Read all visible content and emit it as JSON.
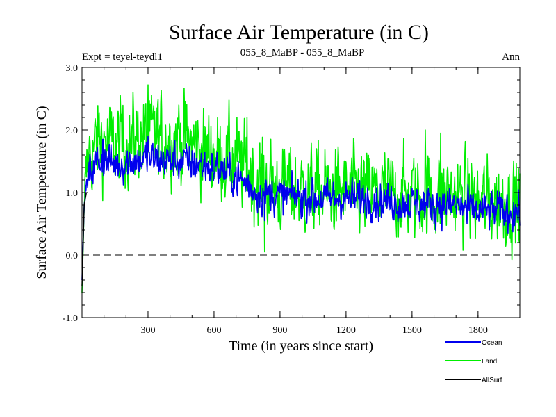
{
  "header": {
    "title": "Surface Air Temperature (in C)",
    "expt": "Expt = teyel-teydl1",
    "comparison": "055_8_MaBP - 055_8_MaBP",
    "season": "Ann"
  },
  "chart_data": {
    "type": "line",
    "title": "Surface Air Temperature (in C)",
    "xlabel": "Time (in years since start)",
    "ylabel": "Surface Air Temperature (in C)",
    "xlim": [
      0,
      1990
    ],
    "ylim": [
      -1.0,
      3.0
    ],
    "x_ticks": [
      300,
      600,
      900,
      1200,
      1500,
      1800
    ],
    "x_tick_labels": [
      "300",
      "600",
      "900",
      "1200",
      "1500",
      "1800"
    ],
    "y_ticks": [
      -1.0,
      0.0,
      1.0,
      2.0,
      3.0
    ],
    "y_tick_labels": [
      "-1.0",
      "0.0",
      "1.0",
      "2.0",
      "3.0"
    ],
    "reference_line": {
      "y": 0.0,
      "style": "dashed"
    },
    "legend_position": "bottom-right",
    "series": [
      {
        "name": "Land",
        "color": "#00ee00",
        "trend": [
          [
            0,
            -0.6
          ],
          [
            10,
            0.8
          ],
          [
            30,
            1.6
          ],
          [
            80,
            1.85
          ],
          [
            150,
            1.75
          ],
          [
            300,
            1.9
          ],
          [
            450,
            1.85
          ],
          [
            600,
            1.6
          ],
          [
            700,
            1.5
          ],
          [
            800,
            1.2
          ],
          [
            900,
            1.05
          ],
          [
            1100,
            1.0
          ],
          [
            1300,
            1.0
          ],
          [
            1500,
            0.95
          ],
          [
            1700,
            0.95
          ],
          [
            1800,
            0.85
          ],
          [
            1990,
            0.85
          ]
        ],
        "variability": 0.32,
        "peaks": [
          [
            300,
            2.72
          ],
          [
            330,
            2.3
          ],
          [
            180,
            2.25
          ],
          [
            440,
            2.4
          ],
          [
            470,
            2.45
          ],
          [
            830,
            0.05
          ],
          [
            750,
            2.2
          ],
          [
            1560,
            2.0
          ],
          [
            1630,
            1.95
          ],
          [
            1950,
            0.2
          ]
        ]
      },
      {
        "name": "Ocean",
        "color": "#0000ee",
        "trend": [
          [
            0,
            -0.4
          ],
          [
            10,
            0.8
          ],
          [
            30,
            1.3
          ],
          [
            80,
            1.55
          ],
          [
            150,
            1.45
          ],
          [
            300,
            1.55
          ],
          [
            450,
            1.5
          ],
          [
            600,
            1.4
          ],
          [
            700,
            1.25
          ],
          [
            800,
            1.0
          ],
          [
            900,
            0.95
          ],
          [
            1100,
            0.9
          ],
          [
            1300,
            0.9
          ],
          [
            1500,
            0.82
          ],
          [
            1700,
            0.8
          ],
          [
            1800,
            0.7
          ],
          [
            1990,
            0.7
          ]
        ],
        "variability": 0.14,
        "peaks": [
          [
            300,
            1.9
          ],
          [
            95,
            1.85
          ],
          [
            830,
            0.55
          ],
          [
            1600,
            0.5
          ],
          [
            1750,
            0.5
          ]
        ]
      },
      {
        "name": "AllSurf",
        "color": "#000000",
        "trend": [
          [
            0,
            -0.5
          ],
          [
            10,
            0.8
          ],
          [
            20,
            1.0
          ]
        ],
        "variability": 0.0,
        "peaks": []
      }
    ]
  }
}
